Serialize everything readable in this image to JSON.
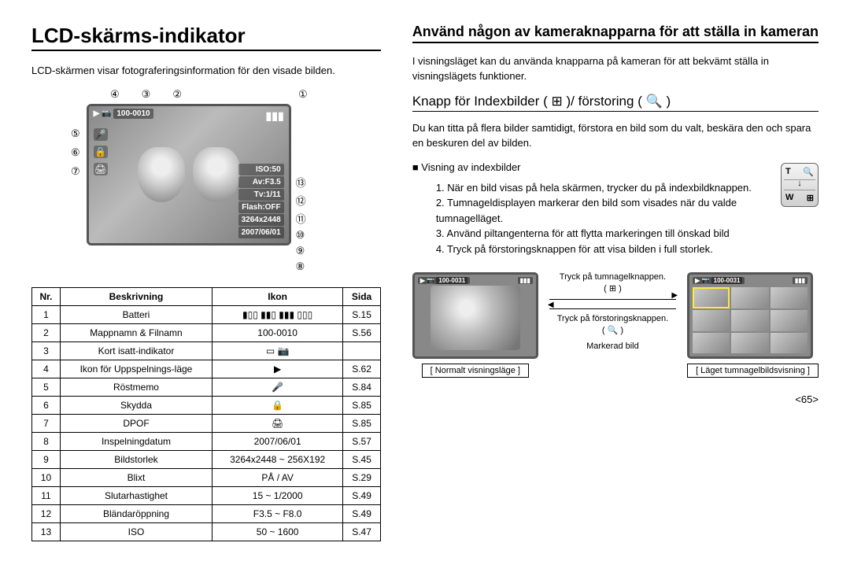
{
  "left": {
    "title": "LCD-skärms-indikator",
    "intro": "LCD-skärmen visar fotograferingsinformation för den visade bilden.",
    "lcd": {
      "folder_file": "100-0010",
      "iso": "ISO:50",
      "av": "Av:F3.5",
      "tv": "Tv:1/11",
      "flash": "Flash:OFF",
      "size": "3264x2448",
      "date": "2007/06/01"
    },
    "callouts_top": [
      "④",
      "③",
      "②",
      "①"
    ],
    "callouts_left": [
      "⑤",
      "⑥",
      "⑦"
    ],
    "callouts_right": [
      "⑬",
      "⑫",
      "⑪",
      "⑩",
      "⑨",
      "⑧"
    ],
    "table": {
      "headers": [
        "Nr.",
        "Beskrivning",
        "Ikon",
        "Sida"
      ],
      "rows": [
        {
          "nr": "1",
          "desc": "Batteri",
          "icon": "batt",
          "page": "S.15"
        },
        {
          "nr": "2",
          "desc": "Mappnamn & Filnamn",
          "icon_text": "100-0010",
          "page": "S.56"
        },
        {
          "nr": "3",
          "desc": "Kort isatt-indikator",
          "icon": "card",
          "page": ""
        },
        {
          "nr": "4",
          "desc": "Ikon för Uppspelnings-läge",
          "icon": "play",
          "page": "S.62"
        },
        {
          "nr": "5",
          "desc": "Röstmemo",
          "icon": "mic",
          "page": "S.84"
        },
        {
          "nr": "6",
          "desc": "Skydda",
          "icon": "lock",
          "page": "S.85"
        },
        {
          "nr": "7",
          "desc": "DPOF",
          "icon": "dpof",
          "page": "S.85"
        },
        {
          "nr": "8",
          "desc": "Inspelningdatum",
          "icon_text": "2007/06/01",
          "page": "S.57"
        },
        {
          "nr": "9",
          "desc": "Bildstorlek",
          "icon_text": "3264x2448 ~ 256X192",
          "page": "S.45"
        },
        {
          "nr": "10",
          "desc": "Blixt",
          "icon_text": "PÅ / AV",
          "page": "S.29"
        },
        {
          "nr": "11",
          "desc": "Slutarhastighet",
          "icon_text": "15 ~ 1/2000",
          "page": "S.49"
        },
        {
          "nr": "12",
          "desc": "Bländaröppning",
          "icon_text": "F3.5 ~ F8.0",
          "page": "S.49"
        },
        {
          "nr": "13",
          "desc": "ISO",
          "icon_text": "50 ~ 1600",
          "page": "S.47"
        }
      ]
    }
  },
  "right": {
    "title": "Använd någon av kameraknapparna för att ställa in kameran",
    "intro": "I visningsläget kan du använda knapparna på kameran för att bekvämt ställa in visningslägets funktioner.",
    "section_head": "Knapp för Indexbilder ( ⊞ )/ förstoring ( 🔍 )",
    "lead": "Du kan titta på flera bilder samtidigt, förstora en bild som du valt, beskära den och spara en beskuren del av bilden.",
    "bullet": "■ Visning av indexbilder",
    "steps": [
      "1. När en bild visas på hela skärmen, trycker du på indexbildknappen.",
      "2. Tumnageldisplayen markerar den bild som visades när du valde tumnagelläget.",
      "3. Använd piltangenterna för att flytta markeringen till önskad bild",
      "4. Tryck på förstoringsknappen för att visa bilden i full storlek."
    ],
    "tw": {
      "t": "T",
      "w": "W",
      "mag": "🔍",
      "grid": "⊞"
    },
    "compare": {
      "file_left": "100-0031",
      "file_right": "100-0031",
      "arrow_top_label": "Tryck på tumnagelknappen.",
      "arrow_top_paren": "( ⊞ )",
      "arrow_bot_label": "Tryck på förstoringsknappen.",
      "arrow_bot_paren": "( 🔍 )",
      "marked": "Markerad bild",
      "caption_left": "[ Normalt visningsläge ]",
      "caption_right": "[ Läget tumnagelbildsvisning ]"
    }
  },
  "page_number": "<65>"
}
